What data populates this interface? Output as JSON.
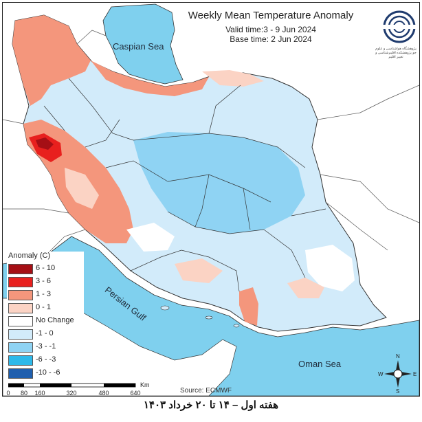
{
  "header": {
    "title": "Weekly Mean Temperature Anomaly",
    "valid_time": "Valid time:3 - 9 Jun 2024",
    "base_time": "Base time: 2 Jun 2024"
  },
  "logo": {
    "icon": "swirl-logo-icon",
    "text": "پژوهشگاه هواشناسی و علوم جو پژوهشکده اقلیم‌شناسی و تغییر اقلیم"
  },
  "seas": {
    "caspian": "Caspian Sea",
    "persian_gulf": "Persian Gulf",
    "oman": "Oman Sea"
  },
  "legend": {
    "title": "Anomaly (C)",
    "items": [
      {
        "label": "6 - 10",
        "color": "#a50f15"
      },
      {
        "label": "3 - 6",
        "color": "#e8201e"
      },
      {
        "label": "1 - 3",
        "color": "#f4967c"
      },
      {
        "label": "0 - 1",
        "color": "#fbd3c4"
      },
      {
        "label": "No Change",
        "color": "#ffffff"
      },
      {
        "label": "-1 - 0",
        "color": "#d2ebfa"
      },
      {
        "label": "-3 - -1",
        "color": "#8fd3f3"
      },
      {
        "label": "-6 - -3",
        "color": "#2db9ea"
      },
      {
        "label": "-10 - -6",
        "color": "#1f5fae"
      }
    ]
  },
  "scalebar": {
    "unit": "Km",
    "ticks": [
      "0",
      "80",
      "160",
      "320",
      "480",
      "640"
    ]
  },
  "source": "Source: ECMWF",
  "compass": {
    "n": "N",
    "s": "S",
    "e": "E",
    "w": "W"
  },
  "caption": "هفته اول – ۱۴ تا ۲۰ خرداد ۱۴۰۳",
  "colors": {
    "sea": "#7fd0ee",
    "map_background": "#ffffff"
  }
}
